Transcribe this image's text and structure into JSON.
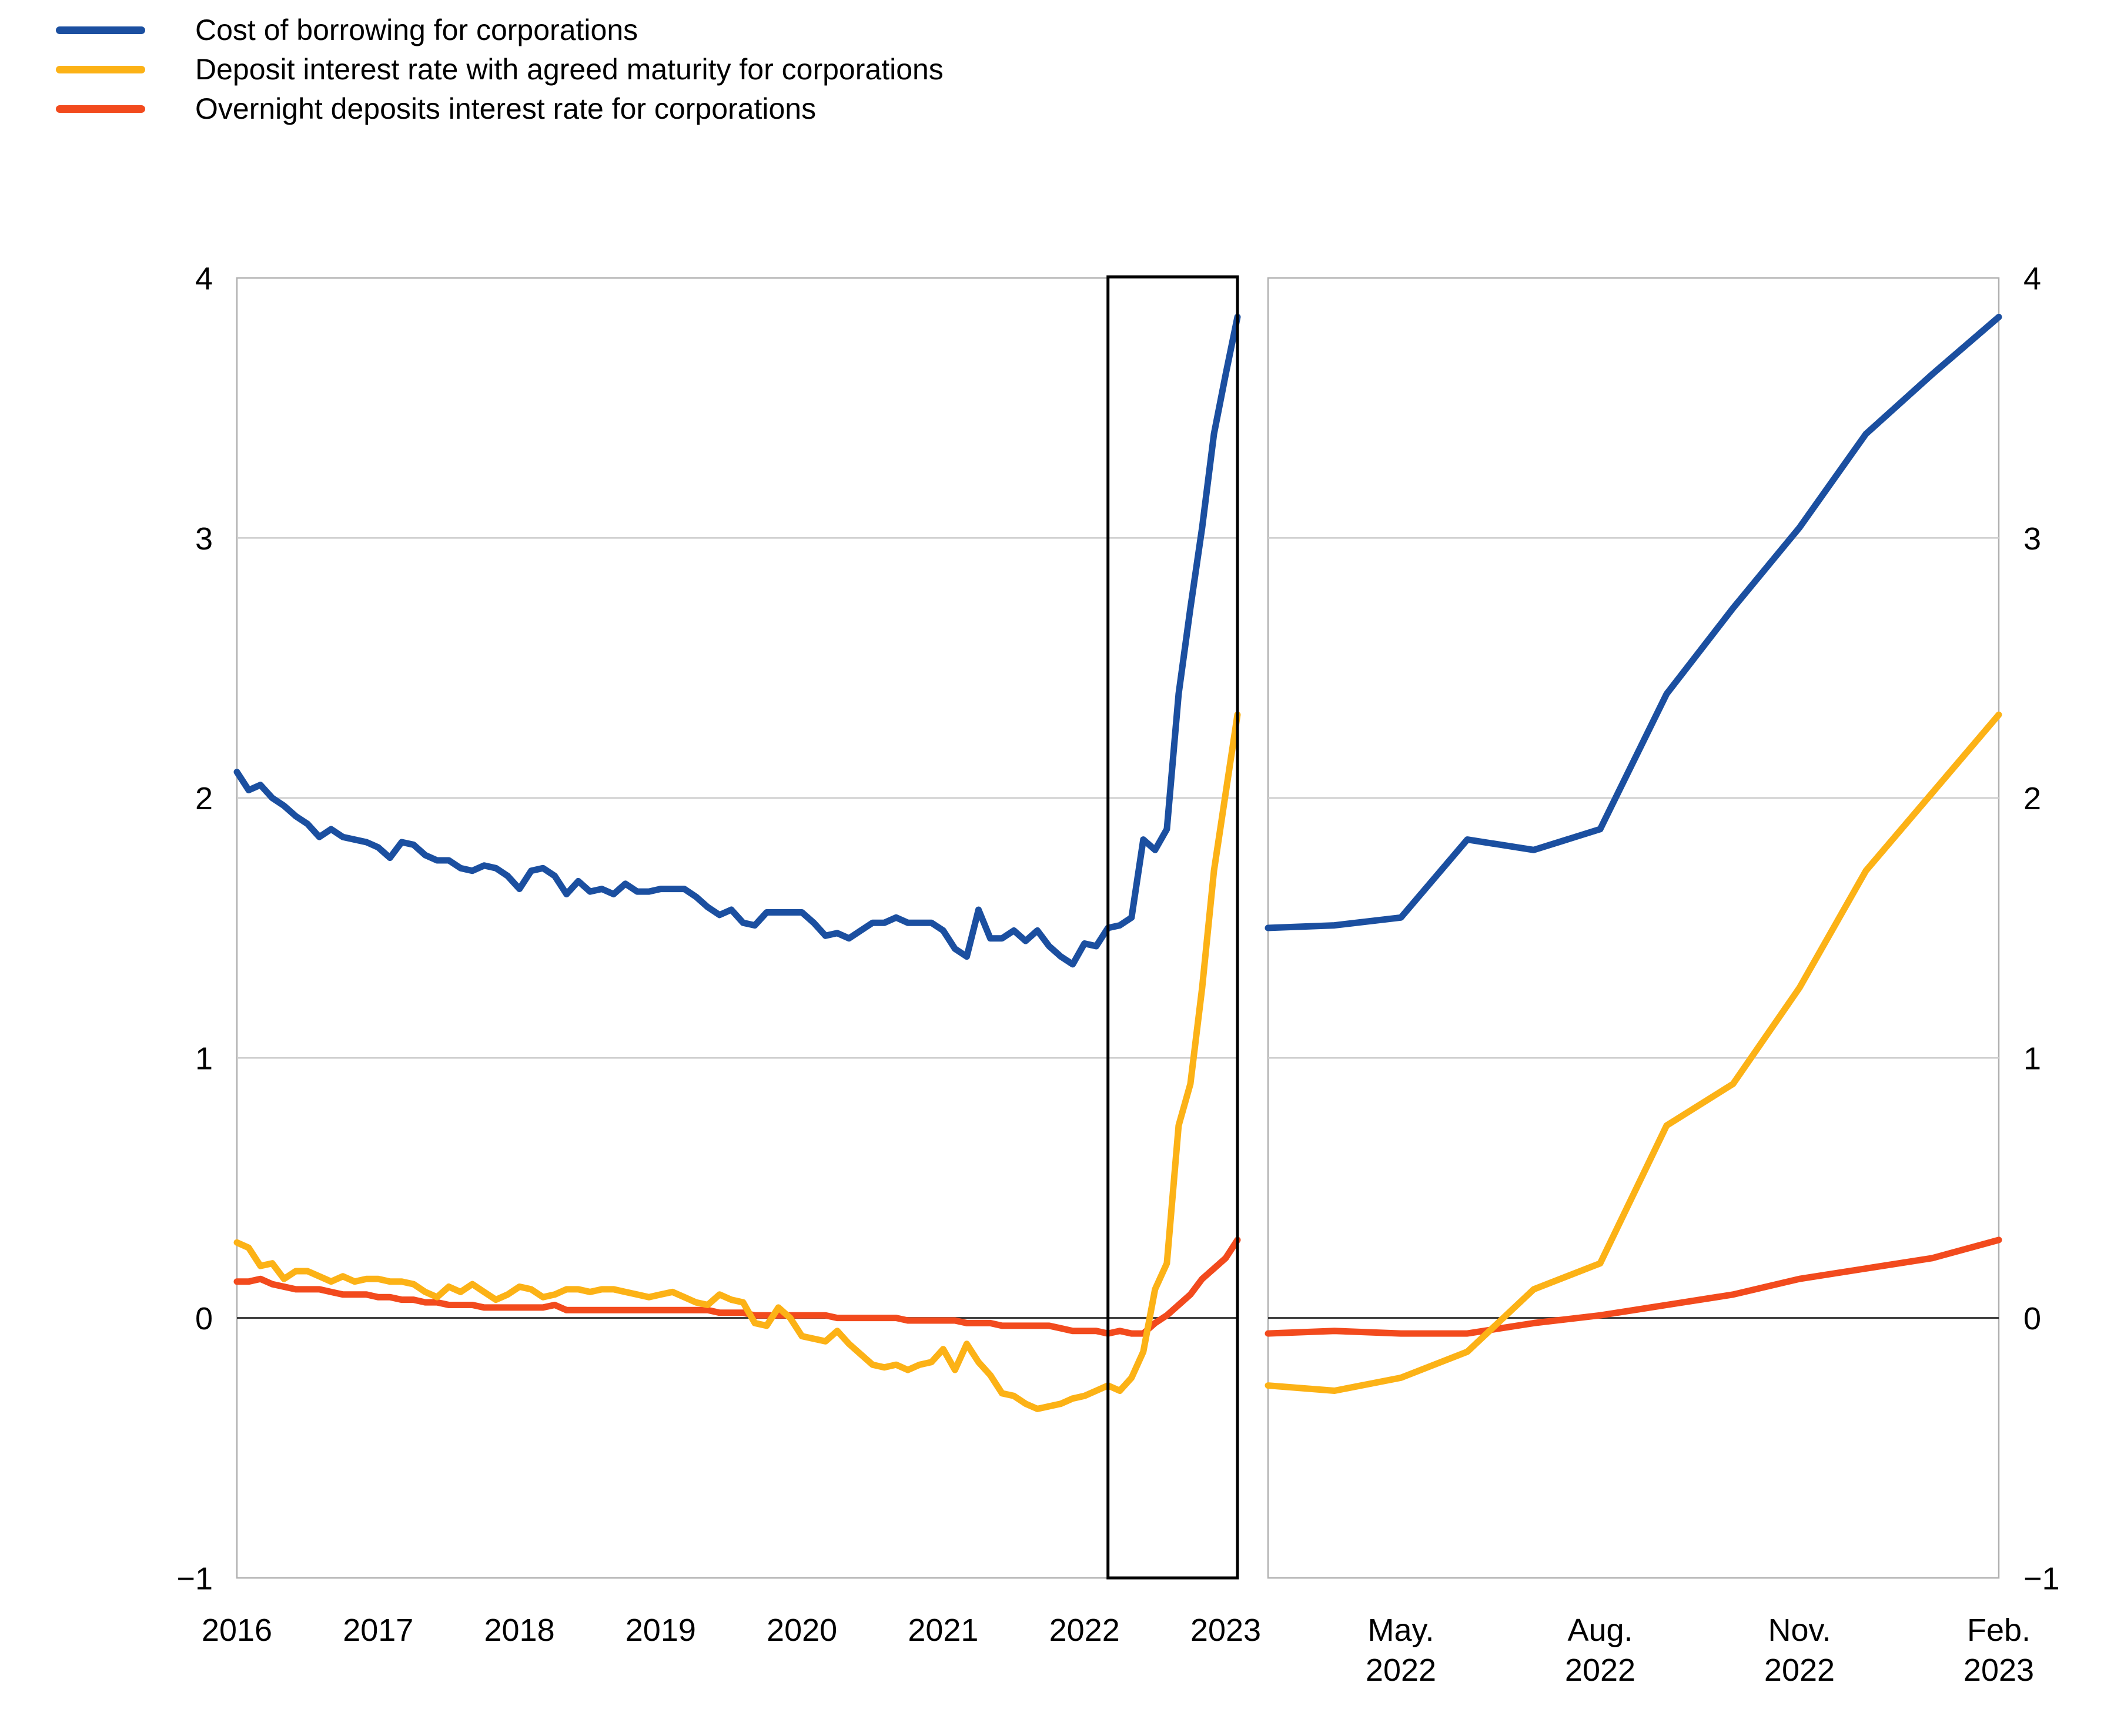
{
  "legend": {
    "items": [
      {
        "label": "Cost of borrowing for corporations",
        "color": "#1b4fa0"
      },
      {
        "label": "Deposit interest rate with agreed maturity for corporations",
        "color": "#fcb216"
      },
      {
        "label": "Overnight deposits interest rate for corporations",
        "color": "#f24a1d"
      }
    ]
  },
  "axes": {
    "y_tick_labels": [
      "4",
      "3",
      "2",
      "1",
      "0",
      "−1"
    ],
    "y_tick_values": [
      4,
      3,
      2,
      1,
      0,
      -1
    ]
  },
  "chart_data": [
    {
      "type": "line",
      "panel": "left",
      "ylim": [
        -1,
        4
      ],
      "grid": "horizontal",
      "x_unit": "month",
      "x_start": "Jan 2016",
      "x_end": "Feb 2023",
      "x_tick_labels": [
        "2016",
        "2017",
        "2018",
        "2019",
        "2020",
        "2021",
        "2022",
        "2023"
      ],
      "x_tick_month_indices": [
        0,
        12,
        24,
        36,
        48,
        60,
        72,
        84
      ],
      "n_points": 86,
      "zero_line": true,
      "highlight_box_months": [
        74,
        85
      ],
      "series": [
        {
          "name": "Cost of borrowing for corporations",
          "color": "#1b4fa0",
          "values": [
            2.1,
            2.03,
            2.05,
            2.0,
            1.97,
            1.93,
            1.9,
            1.85,
            1.88,
            1.85,
            1.84,
            1.83,
            1.81,
            1.77,
            1.83,
            1.82,
            1.78,
            1.76,
            1.76,
            1.73,
            1.72,
            1.74,
            1.73,
            1.7,
            1.65,
            1.72,
            1.73,
            1.7,
            1.63,
            1.68,
            1.64,
            1.65,
            1.63,
            1.67,
            1.64,
            1.64,
            1.65,
            1.65,
            1.65,
            1.62,
            1.58,
            1.55,
            1.57,
            1.52,
            1.51,
            1.56,
            1.56,
            1.56,
            1.56,
            1.52,
            1.47,
            1.48,
            1.46,
            1.49,
            1.52,
            1.52,
            1.54,
            1.52,
            1.52,
            1.52,
            1.49,
            1.42,
            1.39,
            1.57,
            1.46,
            1.46,
            1.49,
            1.45,
            1.49,
            1.43,
            1.39,
            1.36,
            1.44,
            1.43,
            1.5,
            1.51,
            1.54,
            1.84,
            1.8,
            1.88,
            2.4,
            2.73,
            3.04,
            3.4,
            3.63,
            3.85
          ]
        },
        {
          "name": "Deposit interest rate with agreed maturity for corporations",
          "color": "#fcb216",
          "values": [
            0.29,
            0.27,
            0.2,
            0.21,
            0.15,
            0.18,
            0.18,
            0.16,
            0.14,
            0.16,
            0.14,
            0.15,
            0.15,
            0.14,
            0.14,
            0.13,
            0.1,
            0.08,
            0.12,
            0.1,
            0.13,
            0.1,
            0.07,
            0.09,
            0.12,
            0.11,
            0.08,
            0.09,
            0.11,
            0.11,
            0.1,
            0.11,
            0.11,
            0.1,
            0.09,
            0.08,
            0.09,
            0.1,
            0.08,
            0.06,
            0.05,
            0.09,
            0.07,
            0.06,
            -0.02,
            -0.03,
            0.04,
            0.0,
            -0.07,
            -0.08,
            -0.09,
            -0.05,
            -0.1,
            -0.14,
            -0.18,
            -0.19,
            -0.18,
            -0.2,
            -0.18,
            -0.17,
            -0.12,
            -0.2,
            -0.1,
            -0.17,
            -0.22,
            -0.29,
            -0.3,
            -0.33,
            -0.35,
            -0.34,
            -0.33,
            -0.31,
            -0.3,
            -0.28,
            -0.26,
            -0.28,
            -0.23,
            -0.13,
            0.11,
            0.21,
            0.74,
            0.9,
            1.27,
            1.72,
            2.02,
            2.32
          ]
        },
        {
          "name": "Overnight deposits interest rate for corporations",
          "color": "#f24a1d",
          "values": [
            0.14,
            0.14,
            0.15,
            0.13,
            0.12,
            0.11,
            0.11,
            0.11,
            0.1,
            0.09,
            0.09,
            0.09,
            0.08,
            0.08,
            0.07,
            0.07,
            0.06,
            0.06,
            0.05,
            0.05,
            0.05,
            0.04,
            0.04,
            0.04,
            0.04,
            0.04,
            0.04,
            0.05,
            0.03,
            0.03,
            0.03,
            0.03,
            0.03,
            0.03,
            0.03,
            0.03,
            0.03,
            0.03,
            0.03,
            0.03,
            0.03,
            0.02,
            0.02,
            0.02,
            0.01,
            0.01,
            0.01,
            0.01,
            0.01,
            0.01,
            0.01,
            0.0,
            0.0,
            0.0,
            0.0,
            0.0,
            0.0,
            -0.01,
            -0.01,
            -0.01,
            -0.01,
            -0.01,
            -0.02,
            -0.02,
            -0.02,
            -0.03,
            -0.03,
            -0.03,
            -0.03,
            -0.03,
            -0.04,
            -0.05,
            -0.05,
            -0.05,
            -0.06,
            -0.05,
            -0.06,
            -0.06,
            -0.02,
            0.01,
            0.05,
            0.09,
            0.15,
            0.19,
            0.23,
            0.3
          ]
        }
      ]
    },
    {
      "type": "line",
      "panel": "right",
      "ylim": [
        -1,
        4
      ],
      "grid": "horizontal",
      "x_unit": "month",
      "x_start": "Mar 2022",
      "x_end": "Feb 2023",
      "x_tick_labels": [
        [
          "May.",
          "2022"
        ],
        [
          "Aug.",
          "2022"
        ],
        [
          "Nov.",
          "2022"
        ],
        [
          "Feb.",
          "2023"
        ]
      ],
      "x_tick_month_indices": [
        2,
        5,
        8,
        11
      ],
      "n_points": 12,
      "zero_line": true,
      "series": [
        {
          "name": "Cost of borrowing for corporations",
          "color": "#1b4fa0",
          "values": [
            1.5,
            1.51,
            1.54,
            1.84,
            1.8,
            1.88,
            2.4,
            2.73,
            3.04,
            3.4,
            3.63,
            3.85
          ]
        },
        {
          "name": "Deposit interest rate with agreed maturity for corporations",
          "color": "#fcb216",
          "values": [
            -0.26,
            -0.28,
            -0.23,
            -0.13,
            0.11,
            0.21,
            0.74,
            0.9,
            1.27,
            1.72,
            2.02,
            2.32
          ]
        },
        {
          "name": "Overnight deposits interest rate for corporations",
          "color": "#f24a1d",
          "values": [
            -0.06,
            -0.05,
            -0.06,
            -0.06,
            -0.02,
            0.01,
            0.05,
            0.09,
            0.15,
            0.19,
            0.23,
            0.3
          ]
        }
      ]
    }
  ],
  "style": {
    "gridline_color": "#cccccc",
    "border_color": "#b0b0b0",
    "zero_line_color": "#333333",
    "highlight_box_color": "#000000",
    "text_color": "#000000"
  }
}
